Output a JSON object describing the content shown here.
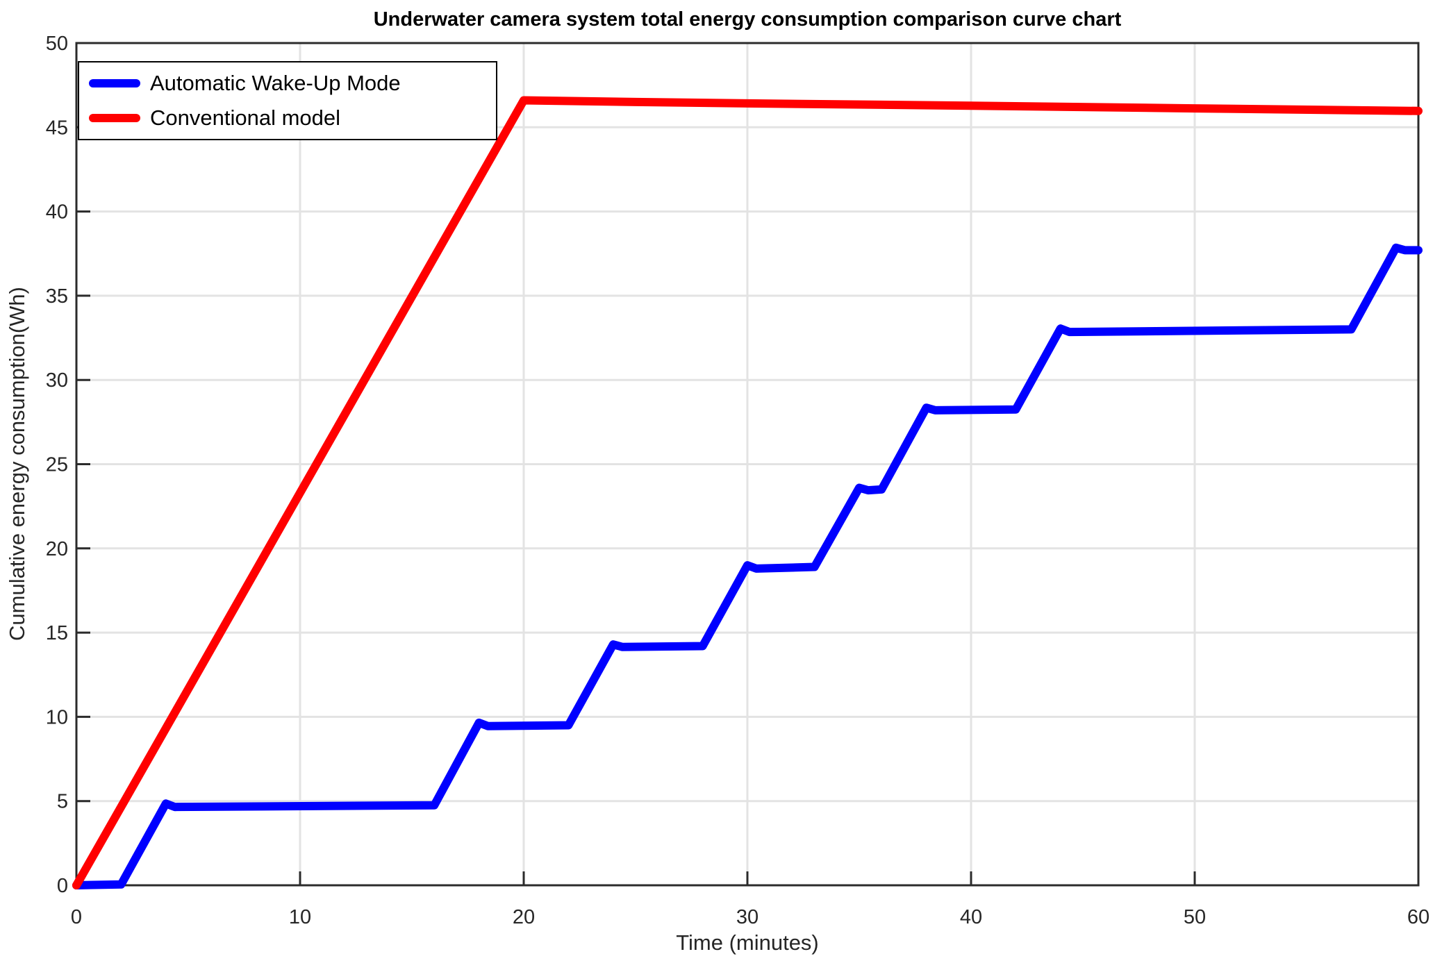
{
  "figure": {
    "background": "#ffffff"
  },
  "chart_data": {
    "type": "line",
    "title": "Underwater camera system total energy consumption comparison curve chart",
    "xlabel": "Time (minutes)",
    "ylabel": "Cumulative energy consumption(Wh)",
    "xlim": [
      0,
      60
    ],
    "ylim": [
      0,
      50
    ],
    "xticks": [
      0,
      10,
      20,
      30,
      40,
      50,
      60
    ],
    "yticks": [
      0,
      5,
      10,
      15,
      20,
      25,
      30,
      35,
      40,
      45,
      50
    ],
    "grid": true,
    "legend_position": "top-left",
    "style": {
      "grid_color": "#e3e3e3",
      "axis_color": "#2b2b2b",
      "line_width": 12
    },
    "series": [
      {
        "name": "Automatic Wake-Up Mode",
        "color": "#0000ff",
        "x": [
          0,
          2,
          4,
          4.4,
          16,
          18,
          18.4,
          22,
          24,
          24.4,
          28,
          30,
          30.4,
          33,
          35,
          35.4,
          36,
          38,
          38.4,
          42,
          44,
          44.4,
          57,
          59,
          59.4,
          60
        ],
        "y": [
          0,
          0.05,
          4.85,
          4.65,
          4.75,
          9.65,
          9.45,
          9.5,
          14.3,
          14.15,
          14.2,
          19.0,
          18.8,
          18.9,
          23.6,
          23.45,
          23.5,
          28.35,
          28.2,
          28.25,
          33.05,
          32.85,
          33.0,
          37.85,
          37.7,
          37.7
        ]
      },
      {
        "name": "Conventional model",
        "color": "#ff0000",
        "x": [
          0,
          20,
          25,
          30,
          40,
          50,
          60
        ],
        "y": [
          0,
          46.6,
          46.5,
          46.42,
          46.28,
          46.12,
          45.97
        ]
      }
    ]
  }
}
